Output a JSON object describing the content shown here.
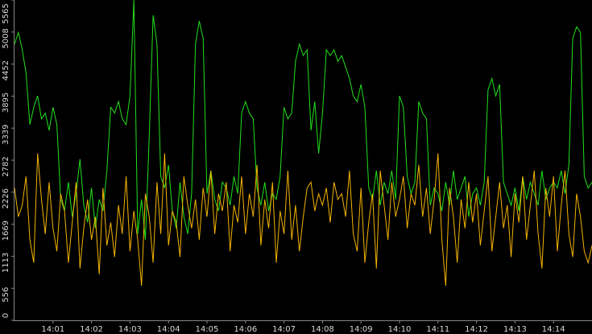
{
  "chart_data": {
    "type": "line",
    "x": [
      0,
      0.1,
      0.2,
      0.3,
      0.4,
      0.5,
      0.6,
      0.7,
      0.8,
      0.9,
      1,
      1.1,
      1.2,
      1.3,
      1.4,
      1.5,
      1.6,
      1.7,
      1.8,
      1.9,
      2,
      2.1,
      2.2,
      2.3,
      2.4,
      2.5,
      2.6,
      2.7,
      2.8,
      2.9,
      3,
      3.1,
      3.2,
      3.3,
      3.4,
      3.5,
      3.6,
      3.7,
      3.8,
      3.9,
      4,
      4.1,
      4.2,
      4.3,
      4.4,
      4.5,
      4.6,
      4.7,
      4.8,
      4.9,
      5,
      5.1,
      5.2,
      5.3,
      5.4,
      5.5,
      5.6,
      5.7,
      5.8,
      5.9,
      6,
      6.1,
      6.2,
      6.3,
      6.4,
      6.5,
      6.6,
      6.7,
      6.8,
      6.9,
      7,
      7.1,
      7.2,
      7.3,
      7.4,
      7.5,
      7.6,
      7.7,
      7.8,
      7.9,
      8,
      8.1,
      8.2,
      8.3,
      8.4,
      8.5,
      8.6,
      8.7,
      8.8,
      8.9,
      9,
      9.1,
      9.2,
      9.3,
      9.4,
      9.5,
      9.6,
      9.7,
      9.8,
      9.9,
      10,
      10.1,
      10.2,
      10.3,
      10.4,
      10.5,
      10.6,
      10.7,
      10.8,
      10.9,
      11,
      11.1,
      11.2,
      11.3,
      11.4,
      11.5,
      11.6,
      11.7,
      11.8,
      11.9,
      12,
      12.1,
      12.2,
      12.3,
      12.4,
      12.5,
      12.6,
      12.7,
      12.8,
      12.9,
      13,
      13.1,
      13.2,
      13.3,
      13.4,
      13.5,
      13.6,
      13.7,
      13.8,
      13.9,
      14,
      14.1,
      14.2,
      14.3,
      14.4,
      14.5,
      14.6,
      14.7,
      14.8,
      14.9,
      15
    ],
    "series": [
      {
        "color": "#22e01c",
        "values": [
          4800,
          5000,
          4700,
          4300,
          3400,
          3700,
          3900,
          3500,
          3600,
          3300,
          3700,
          3400,
          2100,
          1900,
          2400,
          1800,
          2200,
          2800,
          2000,
          1700,
          2300,
          1600,
          2100,
          1900,
          2600,
          3700,
          3600,
          3800,
          3500,
          3400,
          3900,
          5565,
          1500,
          2100,
          1400,
          3200,
          5300,
          4800,
          2500,
          2300,
          2700,
          1900,
          1600,
          2400,
          1800,
          1500,
          2200,
          4800,
          5200,
          4900,
          2200,
          2600,
          2100,
          1900,
          2400,
          2300,
          2000,
          2500,
          2200,
          3600,
          3800,
          3600,
          3500,
          2300,
          2000,
          2400,
          1900,
          2200,
          2100,
          2500,
          3700,
          3500,
          3600,
          4500,
          4800,
          4600,
          4700,
          3300,
          3800,
          2900,
          3600,
          4700,
          4600,
          4700,
          4500,
          4600,
          4400,
          4200,
          3900,
          3800,
          4100,
          3700,
          2300,
          2100,
          2600,
          2000,
          2400,
          2200,
          2600,
          2100,
          3900,
          3700,
          2500,
          2200,
          2400,
          3800,
          3600,
          3500,
          2000,
          2300,
          2200,
          1900,
          2400,
          2000,
          2600,
          2100,
          2300,
          2500,
          1800,
          2200,
          2300,
          2000,
          2400,
          4000,
          4200,
          3900,
          4100,
          2400,
          2200,
          2000,
          2300,
          1900,
          2500,
          2100,
          2400,
          2200,
          2000,
          2600,
          2100,
          2300,
          2400,
          2300,
          2600,
          2200,
          2700,
          4900,
          5100,
          5000,
          2500,
          2300,
          2400
        ]
      },
      {
        "color": "#f4b400",
        "values": [
          2300,
          1800,
          2000,
          2500,
          1400,
          1000,
          2900,
          2100,
          1500,
          2400,
          1600,
          1200,
          2200,
          1900,
          1000,
          1700,
          2400,
          900,
          1600,
          2100,
          1400,
          1800,
          800,
          2300,
          1300,
          1700,
          1100,
          2000,
          1500,
          2500,
          1200,
          1900,
          1400,
          600,
          2200,
          1800,
          1000,
          2400,
          1500,
          2900,
          1300,
          1900,
          1700,
          1100,
          2500,
          2000,
          1600,
          2100,
          1400,
          2300,
          1800,
          2600,
          1500,
          2200,
          1900,
          2400,
          1200,
          2000,
          1700,
          2500,
          1500,
          2200,
          1800,
          2700,
          1300,
          2100,
          1600,
          2400,
          1000,
          1900,
          1500,
          2600,
          1400,
          2000,
          1200,
          1800,
          2300,
          2400,
          1900,
          2200,
          2000,
          2300,
          1700,
          2400,
          2100,
          2200,
          1800,
          2600,
          1500,
          1200,
          2300,
          1000,
          1700,
          2200,
          900,
          2600,
          2000,
          1400,
          2400,
          1800,
          2100,
          2500,
          1600,
          2200,
          2000,
          2700,
          1800,
          2300,
          1500,
          2100,
          2900,
          1400,
          600,
          2300,
          1800,
          1000,
          2100,
          1600,
          2400,
          1700,
          2200,
          1300,
          1900,
          2500,
          1200,
          1800,
          2400,
          1600,
          2000,
          1100,
          2200,
          1700,
          2500,
          1400,
          2000,
          2600,
          1500,
          900,
          2300,
          1800,
          2500,
          1200,
          2000,
          2600,
          1500,
          1100,
          2200,
          1800,
          1200,
          1000,
          1300
        ]
      }
    ],
    "xlim": [
      0,
      15
    ],
    "xticks": [
      {
        "value": 1,
        "label": "14:01"
      },
      {
        "value": 2,
        "label": "14:02"
      },
      {
        "value": 3,
        "label": "14:03"
      },
      {
        "value": 4,
        "label": "14:04"
      },
      {
        "value": 5,
        "label": "14:05"
      },
      {
        "value": 6,
        "label": "14:06"
      },
      {
        "value": 7,
        "label": "14:07"
      },
      {
        "value": 8,
        "label": "14:08"
      },
      {
        "value": 9,
        "label": "14:09"
      },
      {
        "value": 10,
        "label": "14:10"
      },
      {
        "value": 11,
        "label": "14:11"
      },
      {
        "value": 12,
        "label": "14:12"
      },
      {
        "value": 13,
        "label": "14:13"
      },
      {
        "value": 14,
        "label": "14:14"
      }
    ],
    "ylim": [
      0,
      5565
    ],
    "yticks": [
      0,
      556,
      1113,
      1669,
      2226,
      2782,
      3339,
      3895,
      4452,
      5008,
      5565
    ]
  }
}
